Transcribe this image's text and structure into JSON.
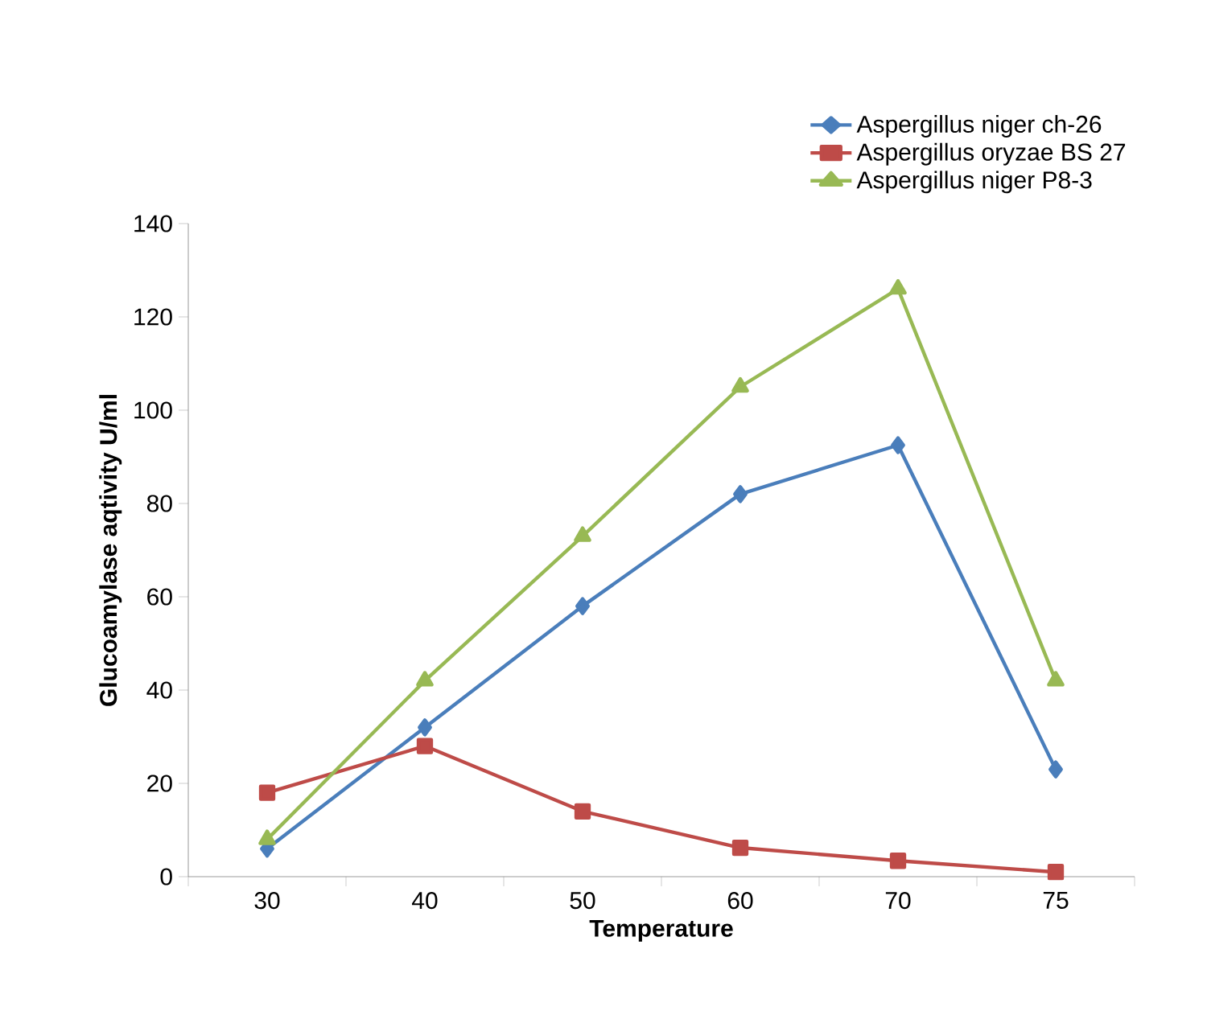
{
  "chart_data": {
    "type": "line",
    "xlabel": "Temperature",
    "ylabel": "Glucoamylase aqtivity U/ml",
    "categories": [
      "30",
      "40",
      "50",
      "60",
      "70",
      "75"
    ],
    "series": [
      {
        "name": "Aspergillus  niger ch-26",
        "color": "#4a7ebb",
        "marker": "diamond",
        "values": [
          6,
          32,
          58,
          82,
          92.5,
          23
        ]
      },
      {
        "name": "Aspergillus  oryzae  BS 27",
        "color": "#be4b48",
        "marker": "square",
        "values": [
          18,
          28,
          14,
          6.2,
          3.4,
          1
        ]
      },
      {
        "name": "Aspergillus niger P8-3",
        "color": "#98b954",
        "marker": "triangle",
        "values": [
          8,
          42,
          73,
          105,
          126,
          42
        ]
      }
    ],
    "ylim": [
      0,
      140
    ],
    "yticks": [
      0,
      20,
      40,
      60,
      80,
      100,
      120,
      140
    ],
    "legend": "top right",
    "grid": false,
    "line_style": "solid"
  }
}
